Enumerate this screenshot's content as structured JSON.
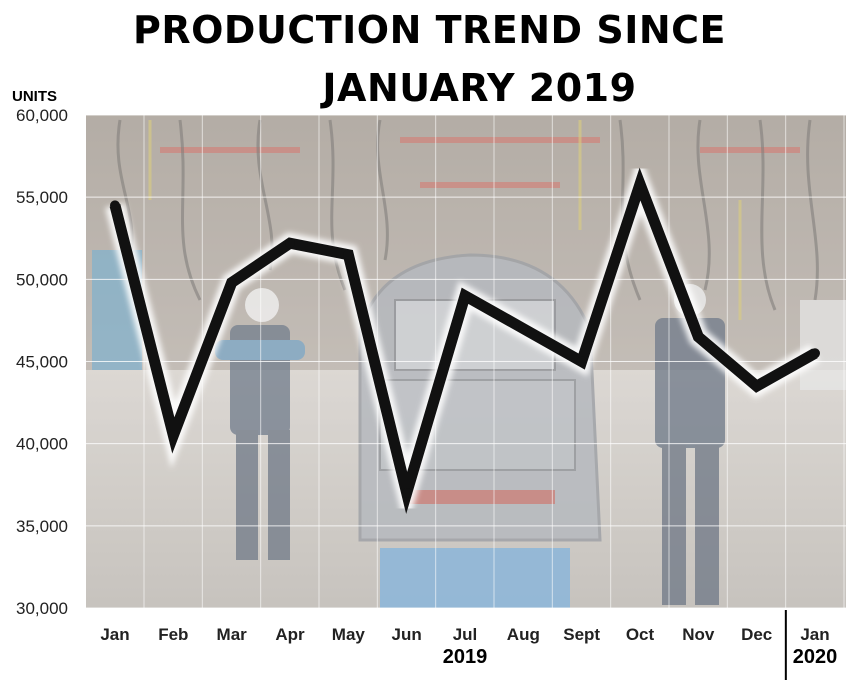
{
  "chart_data": {
    "type": "line",
    "title_lines": [
      "PRODUCTION TREND SINCE",
      "JANUARY 2019"
    ],
    "ylabel": "UNITS",
    "ylim": [
      30000,
      60000
    ],
    "yticks": [
      "30,000",
      "35,000",
      "40,000",
      "45,000",
      "50,000",
      "55,000",
      "60,000"
    ],
    "ytick_values": [
      30000,
      35000,
      40000,
      45000,
      50000,
      55000,
      60000
    ],
    "categories": [
      "Jan",
      "Feb",
      "Mar",
      "Apr",
      "May",
      "Jun",
      "Jul",
      "Aug",
      "Sept",
      "Oct",
      "Nov",
      "Dec",
      "Jan"
    ],
    "values": [
      54500,
      40500,
      49800,
      52200,
      51500,
      37000,
      49000,
      47000,
      45000,
      55800,
      46500,
      43500,
      45500
    ],
    "year_labels": [
      {
        "text": "2019",
        "under_index": 6
      },
      {
        "text": "2020",
        "under_index": 12
      }
    ],
    "grid": true,
    "line_color": "#111111",
    "background_image": "automotive assembly line photo"
  }
}
